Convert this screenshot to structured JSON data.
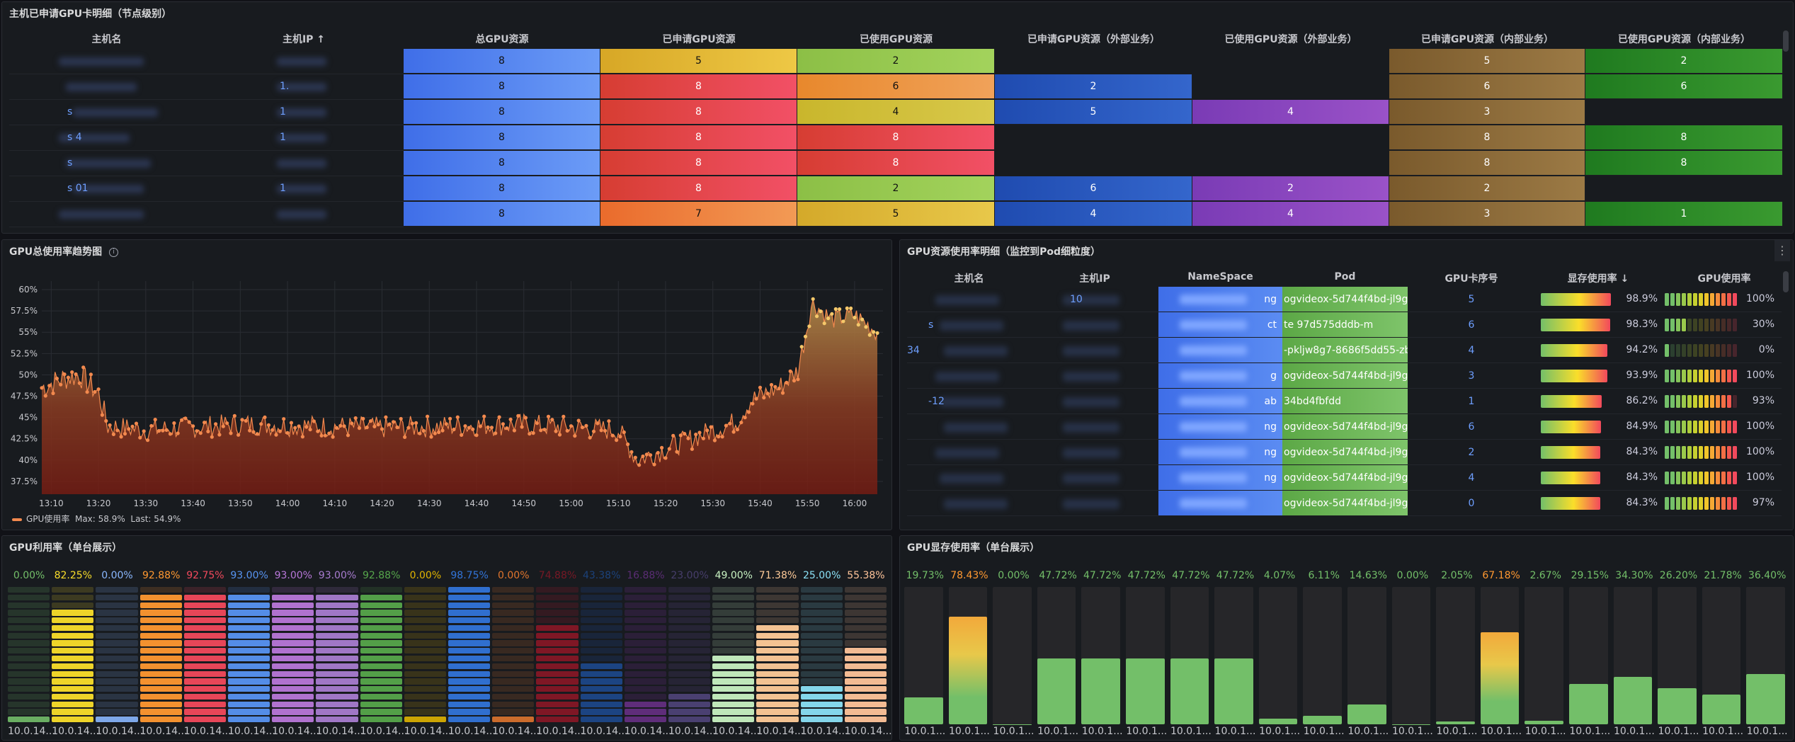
{
  "panel1": {
    "title": "主机已申请GPU卡明细（节点级别）",
    "columns": [
      "主机名",
      "主机IP ↑",
      "总GPU资源",
      "已申请GPU资源",
      "已使用GPU资源",
      "已申请GPU资源（外部业务）",
      "已使用GPU资源（外部业务）",
      "已申请GPU资源（内部业务）",
      "已使用GPU资源（内部业务）"
    ],
    "rows": [
      {
        "host": "",
        "ip": "",
        "total": "8",
        "req": "5",
        "used": "2",
        "ext_req": "",
        "ext_used": "",
        "int_req": "5",
        "int_used": "2"
      },
      {
        "host": "",
        "ip": "1.",
        "total": "8",
        "req": "8",
        "used": "6",
        "ext_req": "2",
        "ext_used": "",
        "int_req": "6",
        "int_used": "6"
      },
      {
        "host": "s",
        "ip": "1",
        "total": "8",
        "req": "8",
        "used": "4",
        "ext_req": "5",
        "ext_used": "4",
        "int_req": "3",
        "int_used": ""
      },
      {
        "host": "s 4",
        "ip": "1",
        "total": "8",
        "req": "8",
        "used": "8",
        "ext_req": "",
        "ext_used": "",
        "int_req": "8",
        "int_used": "8"
      },
      {
        "host": "s",
        "ip": "",
        "total": "8",
        "req": "8",
        "used": "8",
        "ext_req": "",
        "ext_used": "",
        "int_req": "8",
        "int_used": "8"
      },
      {
        "host": "s 01",
        "ip": "1",
        "total": "8",
        "req": "8",
        "used": "2",
        "ext_req": "6",
        "ext_used": "2",
        "int_req": "2",
        "int_used": ""
      },
      {
        "host": "",
        "ip": "",
        "total": "8",
        "req": "7",
        "used": "5",
        "ext_req": "4",
        "ext_used": "4",
        "int_req": "3",
        "int_used": "1"
      }
    ]
  },
  "panel2": {
    "title": "GPU总使用率趋势图",
    "legend_label": "GPU使用率",
    "legend_max": "Max: 58.9%",
    "legend_last": "Last: 54.9%",
    "y_ticks": [
      "60%",
      "57.5%",
      "55%",
      "52.5%",
      "50%",
      "47.5%",
      "45%",
      "42.5%",
      "40%",
      "37.5%"
    ],
    "x_ticks": [
      "13:10",
      "13:20",
      "13:30",
      "13:40",
      "13:50",
      "14:00",
      "14:10",
      "14:20",
      "14:30",
      "14:40",
      "14:50",
      "15:00",
      "15:10",
      "15:20",
      "15:30",
      "15:40",
      "15:50",
      "16:00"
    ]
  },
  "chart_data": {
    "type": "area",
    "title": "GPU总使用率趋势图",
    "series": [
      {
        "name": "GPU使用率",
        "max": 58.9,
        "last": 54.9
      }
    ],
    "ylim": [
      36,
      61
    ],
    "ylabel": "%",
    "x_range": [
      "13:08",
      "16:06"
    ],
    "key_points": [
      {
        "t": "13:08",
        "v": 48.5
      },
      {
        "t": "13:12",
        "v": 49.5
      },
      {
        "t": "13:16",
        "v": 50.0
      },
      {
        "t": "13:20",
        "v": 47.8
      },
      {
        "t": "13:22",
        "v": 44.0
      },
      {
        "t": "13:30",
        "v": 43.5
      },
      {
        "t": "13:50",
        "v": 44.2
      },
      {
        "t": "14:20",
        "v": 43.8
      },
      {
        "t": "14:50",
        "v": 44.2
      },
      {
        "t": "15:10",
        "v": 43.5
      },
      {
        "t": "15:14",
        "v": 40.0
      },
      {
        "t": "15:30",
        "v": 43.5
      },
      {
        "t": "15:35",
        "v": 44.5
      },
      {
        "t": "15:38",
        "v": 47.0
      },
      {
        "t": "15:44",
        "v": 48.5
      },
      {
        "t": "15:48",
        "v": 50.5
      },
      {
        "t": "15:51",
        "v": 58.5
      },
      {
        "t": "15:55",
        "v": 56.5
      },
      {
        "t": "16:00",
        "v": 57.0
      },
      {
        "t": "16:05",
        "v": 54.9
      }
    ]
  },
  "panel3": {
    "title": "GPU资源使用率明细（监控到Pod细粒度）",
    "columns": [
      "主机名",
      "主机IP",
      "NameSpace",
      "Pod",
      "GPU卡序号",
      "显存使用率 ↓",
      "GPU使用率"
    ],
    "rows": [
      {
        "host": "",
        "ip": "10",
        "ns": "ng",
        "pod": "ogvideox-5d744f4bd-jl9g",
        "card": "5",
        "mem": "98.9%",
        "mem_v": 98.9,
        "gpu": "100%",
        "gpu_v": 100
      },
      {
        "host": "s",
        "ip": "",
        "ns": "ct",
        "pod": "te 97d575dddb-m",
        "card": "6",
        "mem": "98.3%",
        "mem_v": 98.3,
        "gpu": "30%",
        "gpu_v": 30
      },
      {
        "host": "34",
        "ip": "",
        "ns": "",
        "pod": "-pkljw8g7-8686f5dd55-zb",
        "card": "4",
        "mem": "94.2%",
        "mem_v": 94.2,
        "gpu": "0%",
        "gpu_v": 0
      },
      {
        "host": "",
        "ip": "",
        "ns": "g",
        "pod": "ogvideox-5d744f4bd-jl9g",
        "card": "3",
        "mem": "93.9%",
        "mem_v": 93.9,
        "gpu": "100%",
        "gpu_v": 100
      },
      {
        "host": "-12",
        "ip": "",
        "ns": "ab",
        "pod": "34bd4fbfdd",
        "card": "1",
        "mem": "86.2%",
        "mem_v": 86.2,
        "gpu": "93%",
        "gpu_v": 93
      },
      {
        "host": "",
        "ip": "",
        "ns": "ng",
        "pod": "ogvideox-5d744f4bd-jl9g",
        "card": "6",
        "mem": "84.9%",
        "mem_v": 84.9,
        "gpu": "100%",
        "gpu_v": 100
      },
      {
        "host": "",
        "ip": "",
        "ns": "ng",
        "pod": "ogvideox-5d744f4bd-jl9g",
        "card": "2",
        "mem": "84.3%",
        "mem_v": 84.3,
        "gpu": "100%",
        "gpu_v": 100
      },
      {
        "host": "",
        "ip": "",
        "ns": "ng",
        "pod": "ogvideox-5d744f4bd-jl9g",
        "card": "4",
        "mem": "84.3%",
        "mem_v": 84.3,
        "gpu": "100%",
        "gpu_v": 100
      },
      {
        "host": "",
        "ip": "",
        "ns": "",
        "pod": "ogvideox-5d744f4bd-jl9g",
        "card": "0",
        "mem": "84.3%",
        "mem_v": 84.3,
        "gpu": "97%",
        "gpu_v": 97
      }
    ]
  },
  "panel4": {
    "title": "GPU利用率（单台展示）",
    "items": [
      {
        "value": "0.00%",
        "v": 0,
        "label": "10.0.14...",
        "color": "#73bf69"
      },
      {
        "value": "82.25%",
        "v": 82.25,
        "label": "10.0.14...",
        "color": "#fade2a"
      },
      {
        "value": "0.00%",
        "v": 0,
        "label": "10.0.14...",
        "color": "#8ab8ff"
      },
      {
        "value": "92.88%",
        "v": 92.88,
        "label": "10.0.14...",
        "color": "#ff9830"
      },
      {
        "value": "92.75%",
        "v": 92.75,
        "label": "10.0.14...",
        "color": "#f2495c"
      },
      {
        "value": "93.00%",
        "v": 93.0,
        "label": "10.0.14...",
        "color": "#5794f2"
      },
      {
        "value": "93.00%",
        "v": 93.0,
        "label": "10.0.14...",
        "color": "#b877d9"
      },
      {
        "value": "93.00%",
        "v": 93.0,
        "label": "10.0.14...",
        "color": "#a87cd0"
      },
      {
        "value": "92.88%",
        "v": 92.88,
        "label": "10.0.14...",
        "color": "#56a64b"
      },
      {
        "value": "0.00%",
        "v": 0,
        "label": "10.0.14...",
        "color": "#e0b400"
      },
      {
        "value": "98.75%",
        "v": 98.75,
        "label": "10.0.14...",
        "color": "#3274d9"
      },
      {
        "value": "0.00%",
        "v": 0,
        "label": "10.0.14...",
        "color": "#e0752d"
      },
      {
        "value": "74.88%",
        "v": 74.88,
        "label": "10.0.14...",
        "color": "#c4162a"
      },
      {
        "value": "43.38%",
        "v": 43.38,
        "label": "10.0.14...",
        "color": "#1f60c4"
      },
      {
        "value": "16.88%",
        "v": 16.88,
        "label": "10.0.14...",
        "color": "#8f3bb8"
      },
      {
        "value": "23.00%",
        "v": 23.0,
        "label": "10.0.14...",
        "color": "#6d5aa8"
      },
      {
        "value": "49.00%",
        "v": 49.0,
        "label": "10.0.14...",
        "color": "#c8f2c2"
      },
      {
        "value": "71.38%",
        "v": 71.38,
        "label": "10.0.14...",
        "color": "#ffcb99"
      },
      {
        "value": "25.00%",
        "v": 25.0,
        "label": "10.0.14...",
        "color": "#8ae0f5"
      },
      {
        "value": "55.38%",
        "v": 55.38,
        "label": "10.0.14...",
        "color": "#ffc49a"
      }
    ]
  },
  "panel5": {
    "title": "GPU显存使用率（单台展示）",
    "items": [
      {
        "value": "19.73%",
        "v": 19.73,
        "label": "10.0.1...",
        "color": "#73bf69"
      },
      {
        "value": "78.43%",
        "v": 78.43,
        "label": "10.0.1...",
        "color": "#ff9830"
      },
      {
        "value": "0.00%",
        "v": 0,
        "label": "10.0.1...",
        "color": "#73bf69"
      },
      {
        "value": "47.72%",
        "v": 47.72,
        "label": "10.0.1...",
        "color": "#73bf69"
      },
      {
        "value": "47.72%",
        "v": 47.72,
        "label": "10.0.1...",
        "color": "#73bf69"
      },
      {
        "value": "47.72%",
        "v": 47.72,
        "label": "10.0.1...",
        "color": "#73bf69"
      },
      {
        "value": "47.72%",
        "v": 47.72,
        "label": "10.0.1...",
        "color": "#73bf69"
      },
      {
        "value": "47.72%",
        "v": 47.72,
        "label": "10.0.1...",
        "color": "#73bf69"
      },
      {
        "value": "4.07%",
        "v": 4.07,
        "label": "10.0.1...",
        "color": "#73bf69"
      },
      {
        "value": "6.11%",
        "v": 6.11,
        "label": "10.0.1...",
        "color": "#73bf69"
      },
      {
        "value": "14.63%",
        "v": 14.63,
        "label": "10.0.1...",
        "color": "#73bf69"
      },
      {
        "value": "0.00%",
        "v": 0,
        "label": "10.0.1...",
        "color": "#73bf69"
      },
      {
        "value": "2.05%",
        "v": 2.05,
        "label": "10.0.1...",
        "color": "#73bf69"
      },
      {
        "value": "67.18%",
        "v": 67.18,
        "label": "10.0.1...",
        "color": "#ff9830"
      },
      {
        "value": "2.67%",
        "v": 2.67,
        "label": "10.0.1...",
        "color": "#73bf69"
      },
      {
        "value": "29.15%",
        "v": 29.15,
        "label": "10.0.1...",
        "color": "#73bf69"
      },
      {
        "value": "34.30%",
        "v": 34.3,
        "label": "10.0.1...",
        "color": "#73bf69"
      },
      {
        "value": "26.20%",
        "v": 26.2,
        "label": "10.0.1...",
        "color": "#73bf69"
      },
      {
        "value": "21.78%",
        "v": 21.78,
        "label": "10.0.1...",
        "color": "#73bf69"
      },
      {
        "value": "36.40%",
        "v": 36.4,
        "label": "10.0.1...",
        "color": "#73bf69"
      }
    ]
  }
}
